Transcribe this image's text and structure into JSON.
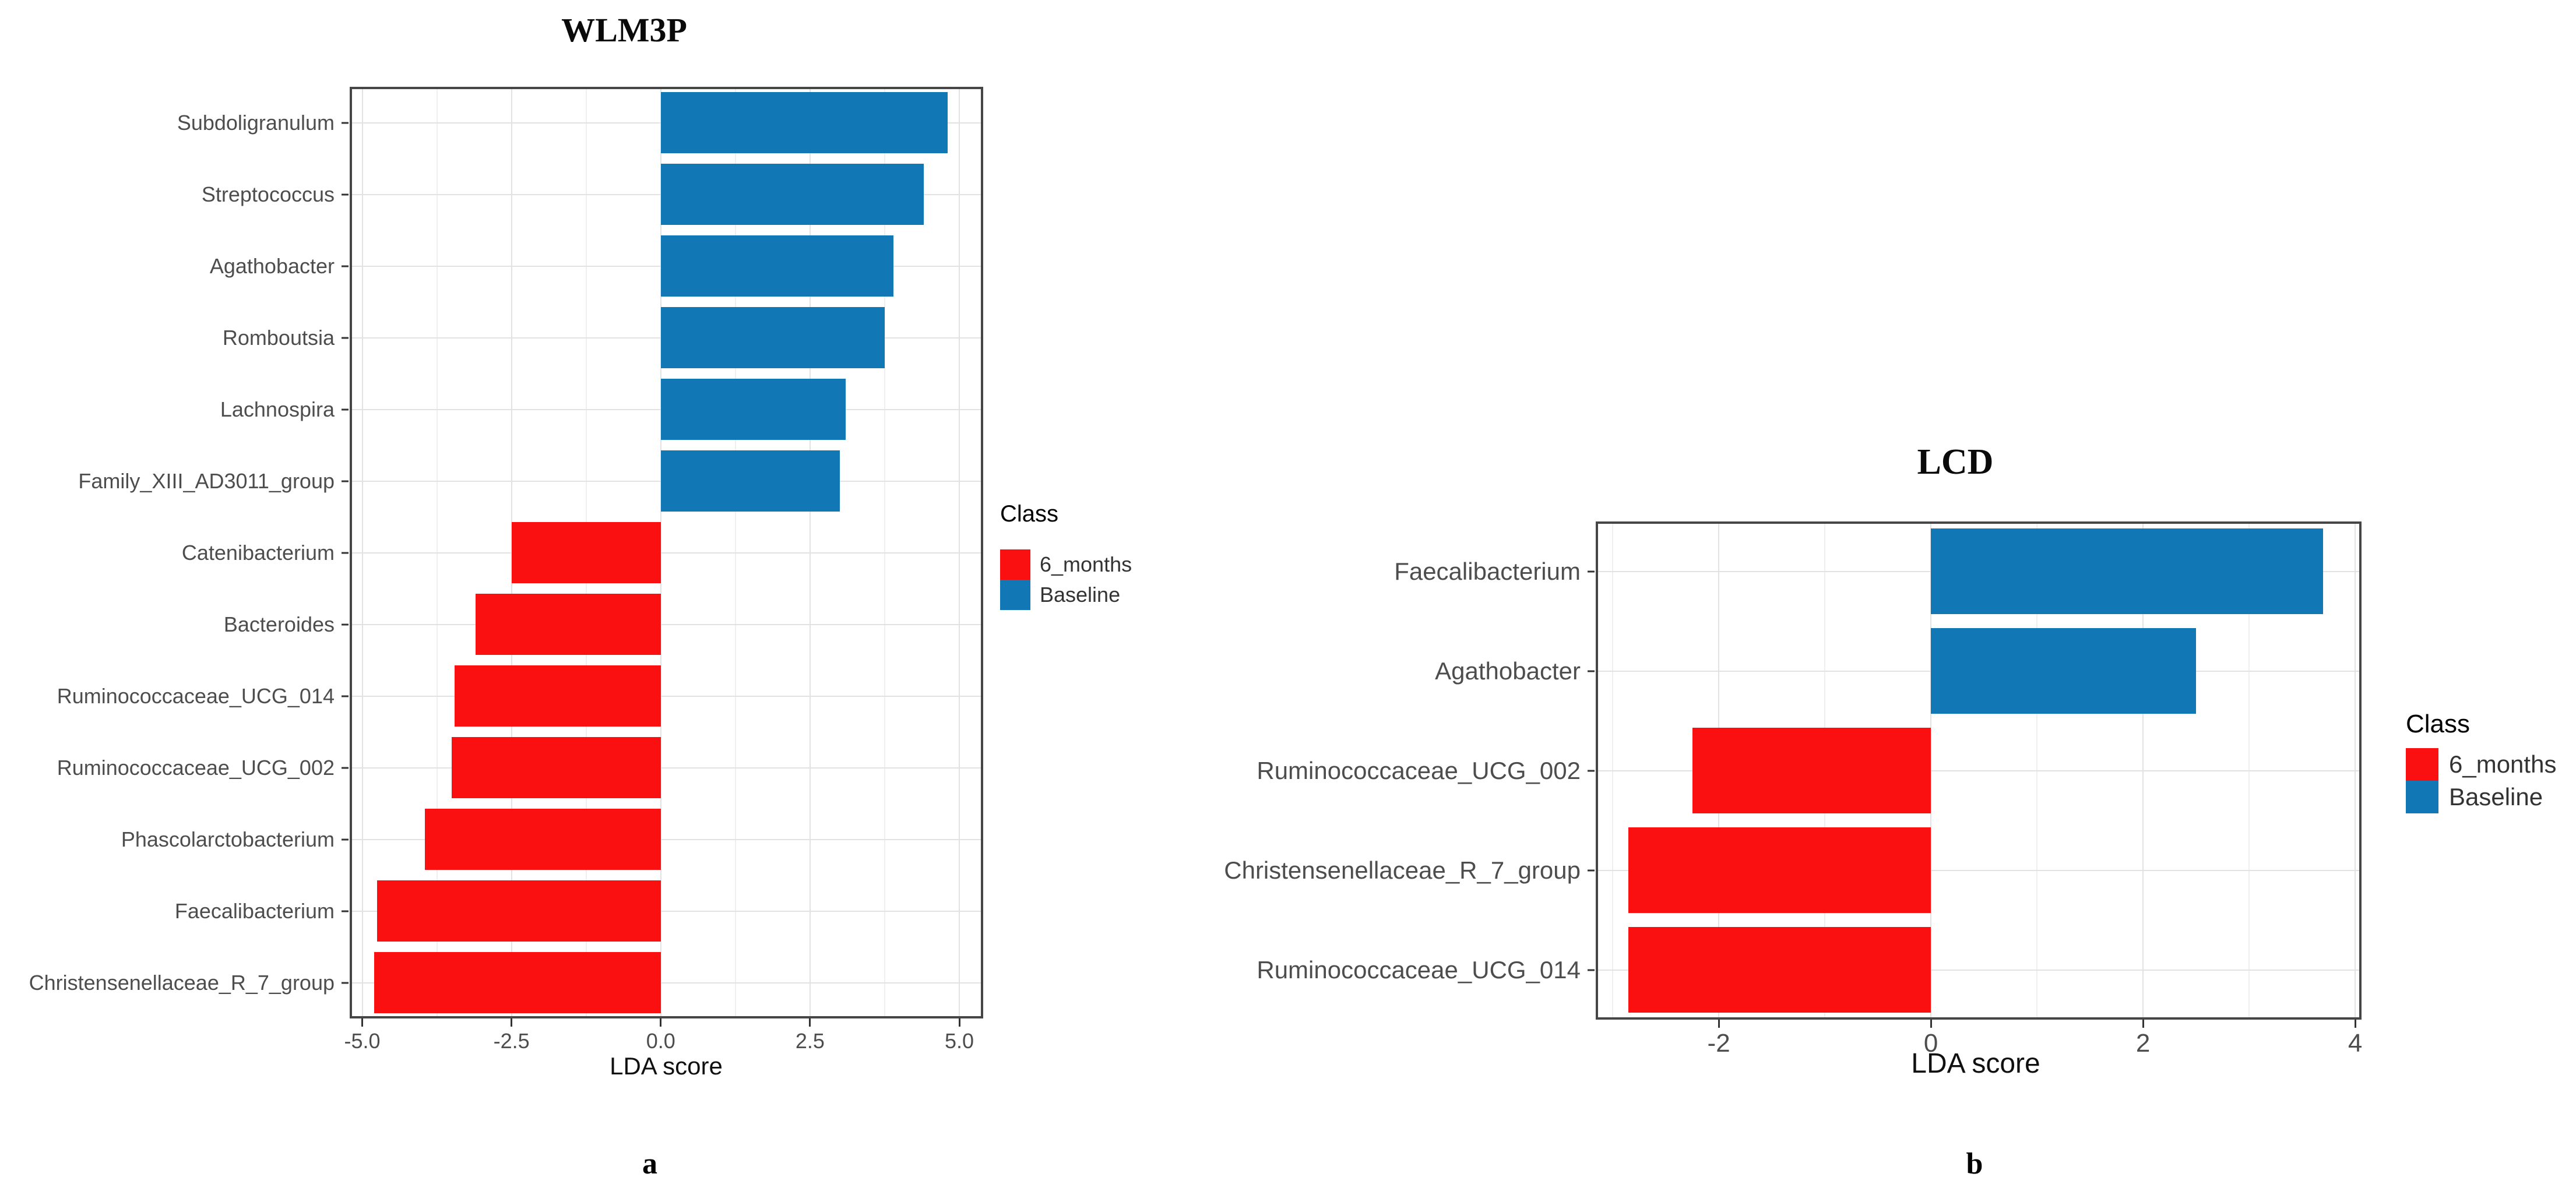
{
  "figure": {
    "panel_letters": {
      "a": "a",
      "b": "b"
    }
  },
  "colors": {
    "class_6_months": "#FA1010",
    "class_baseline": "#1277B5",
    "panel_border": "#464646",
    "grid_major": "#E2E2E2",
    "grid_minor": "#EFEFEF",
    "axis_text": "#4D4D4D"
  },
  "legend": {
    "title": "Class",
    "items": [
      {
        "label": "6_months",
        "color": "#FA1010"
      },
      {
        "label": "Baseline",
        "color": "#1277B5"
      }
    ]
  },
  "chart_data": [
    {
      "type": "bar",
      "orientation": "horizontal",
      "title": "WLM3P",
      "xlabel": "LDA score",
      "categories": [
        "Subdoligranulum",
        "Streptococcus",
        "Agathobacter",
        "Romboutsia",
        "Lachnospira",
        "Family_XIII_AD3011_group",
        "Catenibacterium",
        "Bacteroides",
        "Ruminococcaceae_UCG_014",
        "Ruminococcaceae_UCG_002",
        "Phascolarctobacterium",
        "Faecalibacterium",
        "Christensenellaceae_R_7_group"
      ],
      "values": [
        4.8,
        4.4,
        3.9,
        3.75,
        3.1,
        3.0,
        -2.5,
        -3.1,
        -3.45,
        -3.5,
        -3.95,
        -4.75,
        -4.8
      ],
      "classes": [
        "Baseline",
        "Baseline",
        "Baseline",
        "Baseline",
        "Baseline",
        "Baseline",
        "6_months",
        "6_months",
        "6_months",
        "6_months",
        "6_months",
        "6_months",
        "6_months"
      ],
      "xlim": [
        -5.21,
        5.4
      ],
      "xticks": [
        -5.0,
        -2.5,
        0.0,
        2.5,
        5.0
      ],
      "xtick_labels": [
        "-5.0",
        "-2.5",
        "0.0",
        "2.5",
        "5.0"
      ],
      "minor_gridlines": [
        -3.75,
        -1.25,
        1.25,
        3.75
      ],
      "grid": true,
      "legend_position": "right"
    },
    {
      "type": "bar",
      "orientation": "horizontal",
      "title": "LCD",
      "xlabel": "LDA score",
      "categories": [
        "Faecalibacterium",
        "Agathobacter",
        "Ruminococcaceae_UCG_002",
        "Christensenellaceae_R_7_group",
        "Ruminococcaceae_UCG_014"
      ],
      "values": [
        3.7,
        2.5,
        -2.25,
        -2.85,
        -2.85
      ],
      "classes": [
        "Baseline",
        "Baseline",
        "6_months",
        "6_months",
        "6_months"
      ],
      "xlim": [
        -3.16,
        4.06
      ],
      "xticks": [
        -2,
        0,
        2,
        4
      ],
      "xtick_labels": [
        "-2",
        "0",
        "2",
        "4"
      ],
      "minor_gridlines": [
        -3,
        -1,
        1,
        3
      ],
      "grid": true,
      "legend_position": "right"
    }
  ]
}
